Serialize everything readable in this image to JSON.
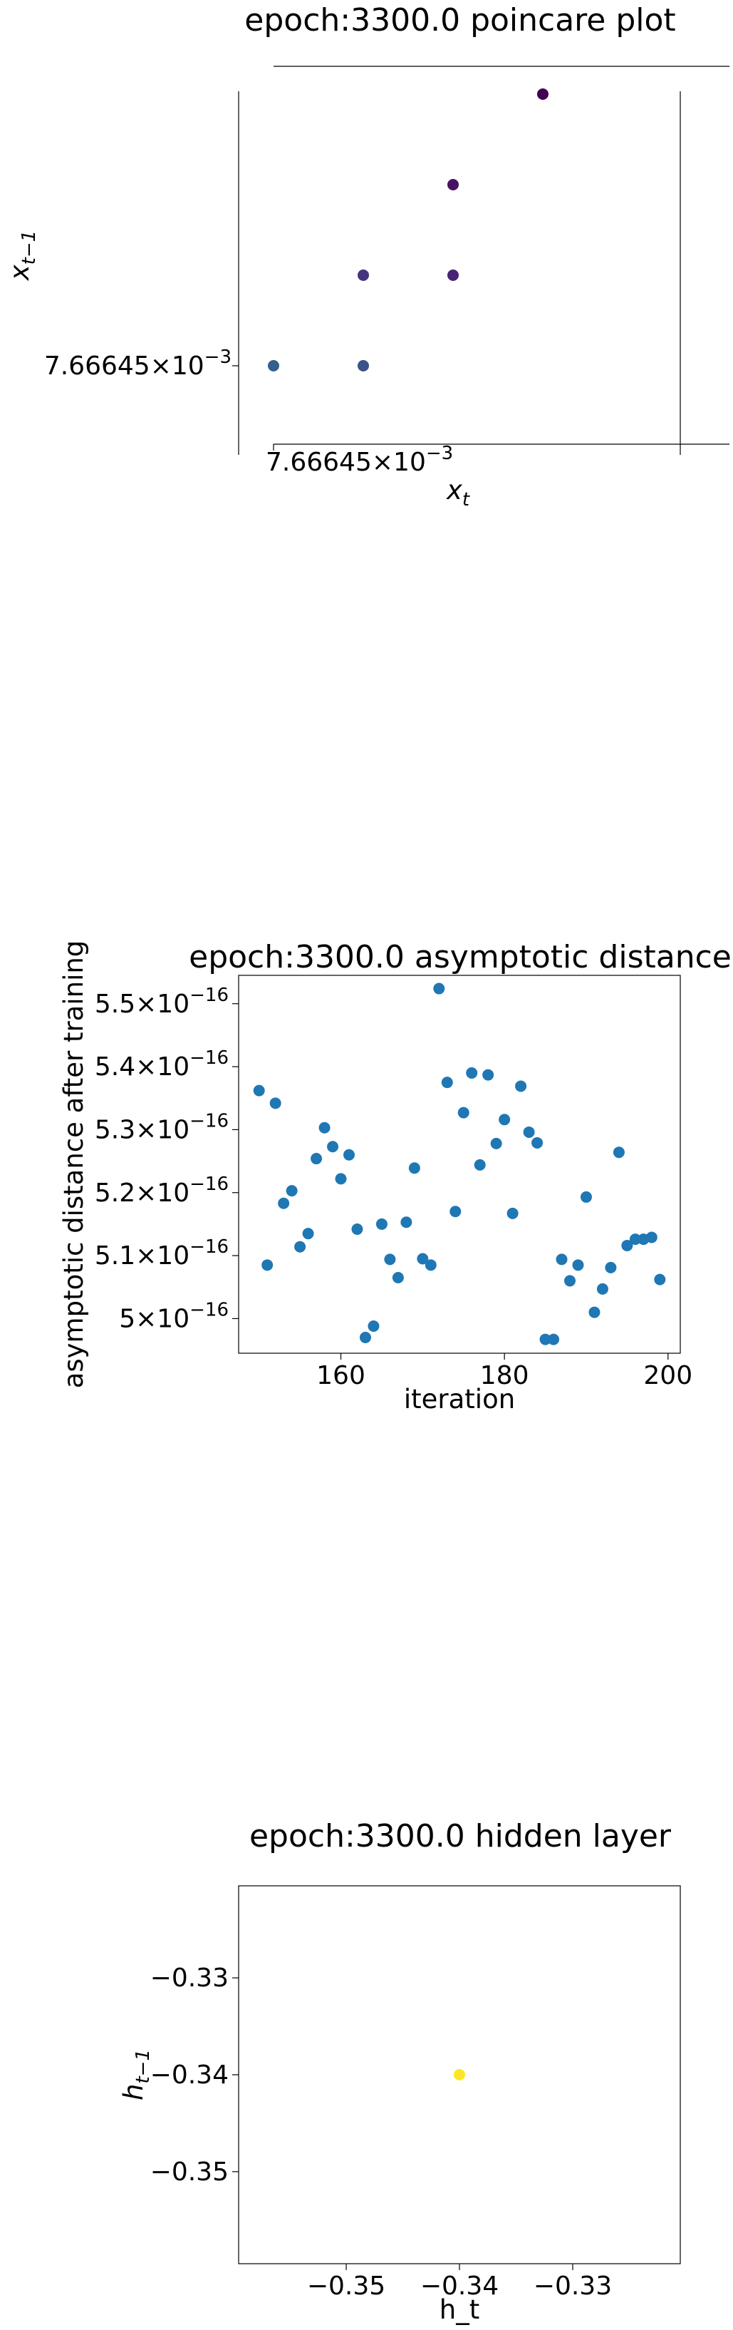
{
  "chart_data": [
    {
      "type": "scatter",
      "title": "epoch:3300.0 poincare plot",
      "xlabel_base": "x",
      "xlabel_sub": "t",
      "ylabel_base": "x",
      "ylabel_sub": "t−1",
      "xtick_label": "7.66645×10−3",
      "ytick_label": "7.66645×10−3",
      "xtick_mantissa": "7.66645",
      "xtick_exp": "−3",
      "ytick_mantissa": "7.66645",
      "ytick_exp": "−3",
      "colormap": "viridis",
      "spines": "zero-centered",
      "points": [
        {
          "x": 0,
          "y": 0,
          "c": 0.3
        },
        {
          "x": 1,
          "y": 0,
          "c": 0.25
        },
        {
          "x": 1,
          "y": 1,
          "c": 0.15
        },
        {
          "x": 2,
          "y": 1,
          "c": 0.1
        },
        {
          "x": 2,
          "y": 2,
          "c": 0.05
        },
        {
          "x": 3,
          "y": 3,
          "c": 0.0
        }
      ]
    },
    {
      "type": "scatter",
      "title": "epoch:3300.0 asymptotic distance",
      "xlabel": "iteration",
      "ylabel": "asymptotic distance after training",
      "color": "#1f77b4",
      "xlim": [
        147.5,
        201.5
      ],
      "ylim": [
        4.945,
        5.545
      ],
      "xticks": [
        160,
        180,
        200
      ],
      "yticks": [
        {
          "value": 5.0,
          "mantissa": "5",
          "exp": "−16"
        },
        {
          "value": 5.1,
          "mantissa": "5.1",
          "exp": "−16"
        },
        {
          "value": 5.2,
          "mantissa": "5.2",
          "exp": "−16"
        },
        {
          "value": 5.3,
          "mantissa": "5.3",
          "exp": "−16"
        },
        {
          "value": 5.4,
          "mantissa": "5.4",
          "exp": "−16"
        },
        {
          "value": 5.5,
          "mantissa": "5.5",
          "exp": "−16"
        }
      ],
      "y_unit": "×10⁻¹⁶",
      "x": [
        150,
        151,
        152,
        153,
        154,
        155,
        156,
        157,
        158,
        159,
        160,
        161,
        162,
        163,
        164,
        165,
        166,
        167,
        168,
        169,
        170,
        171,
        172,
        173,
        174,
        175,
        176,
        177,
        178,
        179,
        180,
        181,
        182,
        183,
        184,
        185,
        186,
        187,
        188,
        189,
        190,
        191,
        192,
        193,
        194,
        195,
        196,
        197,
        198,
        199
      ],
      "y": [
        5.362,
        5.085,
        5.342,
        5.183,
        5.203,
        5.114,
        5.135,
        5.254,
        5.303,
        5.273,
        5.222,
        5.26,
        5.142,
        4.97,
        4.988,
        5.15,
        5.094,
        5.065,
        5.153,
        5.239,
        5.095,
        5.085,
        5.524,
        5.375,
        5.17,
        5.327,
        5.39,
        5.244,
        5.387,
        5.278,
        5.316,
        5.167,
        5.369,
        5.296,
        5.279,
        4.967,
        4.967,
        5.094,
        5.06,
        5.085,
        5.193,
        5.01,
        5.047,
        5.081,
        5.264,
        5.116,
        5.126,
        5.126,
        5.129,
        5.062
      ]
    },
    {
      "type": "scatter",
      "title": "epoch:3300.0 hidden layer",
      "xlabel": "h_t",
      "ylabel_base": "h",
      "ylabel_sub": "t−1",
      "xlim": [
        -0.3595,
        -0.3205
      ],
      "ylim": [
        -0.3595,
        -0.3205
      ],
      "xticks": [
        "−0.35",
        "−0.34",
        "−0.33"
      ],
      "xtick_values": [
        -0.35,
        -0.34,
        -0.33
      ],
      "yticks": [
        "−0.33",
        "−0.34",
        "−0.35"
      ],
      "ytick_values": [
        -0.33,
        -0.34,
        -0.35
      ],
      "points": [
        {
          "x": -0.34,
          "y": -0.34
        }
      ],
      "color": "#fde725"
    }
  ]
}
